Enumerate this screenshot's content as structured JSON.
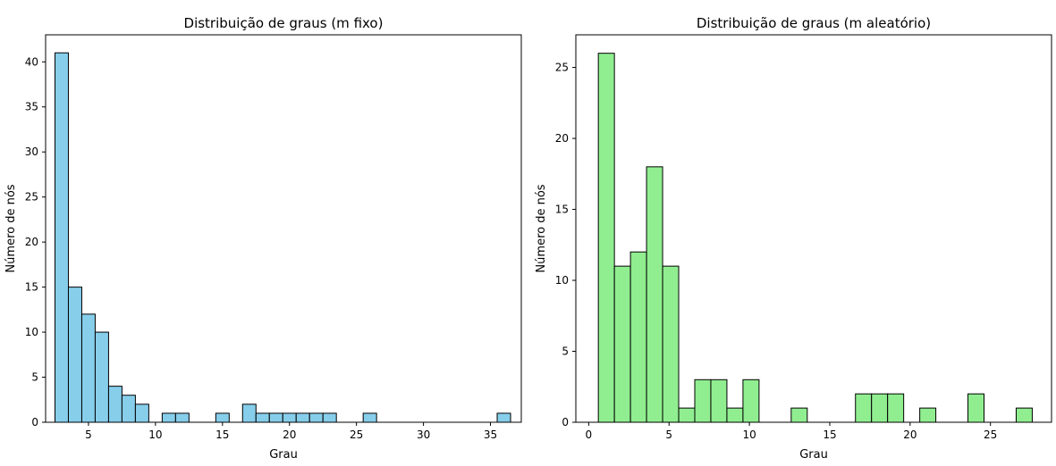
{
  "chart_data": [
    {
      "type": "bar",
      "title": "Distribuição de graus (m fixo)",
      "xlabel": "Grau",
      "ylabel": "Número de nós",
      "xlim": [
        1.8,
        37.3
      ],
      "ylim": [
        0,
        43
      ],
      "xticks": [
        5,
        10,
        15,
        20,
        25,
        30,
        35
      ],
      "yticks": [
        0,
        5,
        10,
        15,
        20,
        25,
        30,
        35,
        40
      ],
      "bar_color": "#87ceeb",
      "edge_color": "#000000",
      "bin_width": 1.0,
      "bins": [
        {
          "x0": 2.5,
          "x1": 3.5,
          "value": 41
        },
        {
          "x0": 3.5,
          "x1": 4.5,
          "value": 15
        },
        {
          "x0": 4.5,
          "x1": 5.5,
          "value": 12
        },
        {
          "x0": 5.5,
          "x1": 6.5,
          "value": 10
        },
        {
          "x0": 6.5,
          "x1": 7.5,
          "value": 4
        },
        {
          "x0": 7.5,
          "x1": 8.5,
          "value": 3
        },
        {
          "x0": 8.5,
          "x1": 9.5,
          "value": 2
        },
        {
          "x0": 10.5,
          "x1": 11.5,
          "value": 1
        },
        {
          "x0": 11.5,
          "x1": 12.5,
          "value": 1
        },
        {
          "x0": 14.5,
          "x1": 15.5,
          "value": 1
        },
        {
          "x0": 16.5,
          "x1": 17.5,
          "value": 2
        },
        {
          "x0": 17.5,
          "x1": 18.5,
          "value": 1
        },
        {
          "x0": 18.5,
          "x1": 19.5,
          "value": 1
        },
        {
          "x0": 19.5,
          "x1": 20.5,
          "value": 1
        },
        {
          "x0": 20.5,
          "x1": 21.5,
          "value": 1
        },
        {
          "x0": 21.5,
          "x1": 22.5,
          "value": 1
        },
        {
          "x0": 22.5,
          "x1": 23.5,
          "value": 1
        },
        {
          "x0": 25.5,
          "x1": 26.5,
          "value": 1
        },
        {
          "x0": 35.5,
          "x1": 36.5,
          "value": 1
        }
      ]
    },
    {
      "type": "bar",
      "title": "Distribuição de graus (m aleatório)",
      "xlabel": "Grau",
      "ylabel": "Número de nós",
      "xlim": [
        -0.8,
        28.8
      ],
      "ylim": [
        0,
        27.3
      ],
      "xticks": [
        0,
        5,
        10,
        15,
        20,
        25
      ],
      "yticks": [
        0,
        5,
        10,
        15,
        20,
        25
      ],
      "bar_color": "#90ee90",
      "edge_color": "#000000",
      "bin_width": 1.0,
      "bins": [
        {
          "x0": 0.6,
          "x1": 1.6,
          "value": 26
        },
        {
          "x0": 1.6,
          "x1": 2.6,
          "value": 11
        },
        {
          "x0": 2.6,
          "x1": 3.6,
          "value": 12
        },
        {
          "x0": 3.6,
          "x1": 4.6,
          "value": 18
        },
        {
          "x0": 4.6,
          "x1": 5.6,
          "value": 11
        },
        {
          "x0": 5.6,
          "x1": 6.6,
          "value": 1
        },
        {
          "x0": 6.6,
          "x1": 7.6,
          "value": 3
        },
        {
          "x0": 7.6,
          "x1": 8.6,
          "value": 3
        },
        {
          "x0": 8.6,
          "x1": 9.6,
          "value": 1
        },
        {
          "x0": 9.6,
          "x1": 10.6,
          "value": 3
        },
        {
          "x0": 12.6,
          "x1": 13.6,
          "value": 1
        },
        {
          "x0": 16.6,
          "x1": 17.6,
          "value": 2
        },
        {
          "x0": 17.6,
          "x1": 18.6,
          "value": 2
        },
        {
          "x0": 18.6,
          "x1": 19.6,
          "value": 2
        },
        {
          "x0": 20.6,
          "x1": 21.6,
          "value": 1
        },
        {
          "x0": 23.6,
          "x1": 24.6,
          "value": 2
        },
        {
          "x0": 26.6,
          "x1": 27.6,
          "value": 1
        }
      ]
    }
  ]
}
